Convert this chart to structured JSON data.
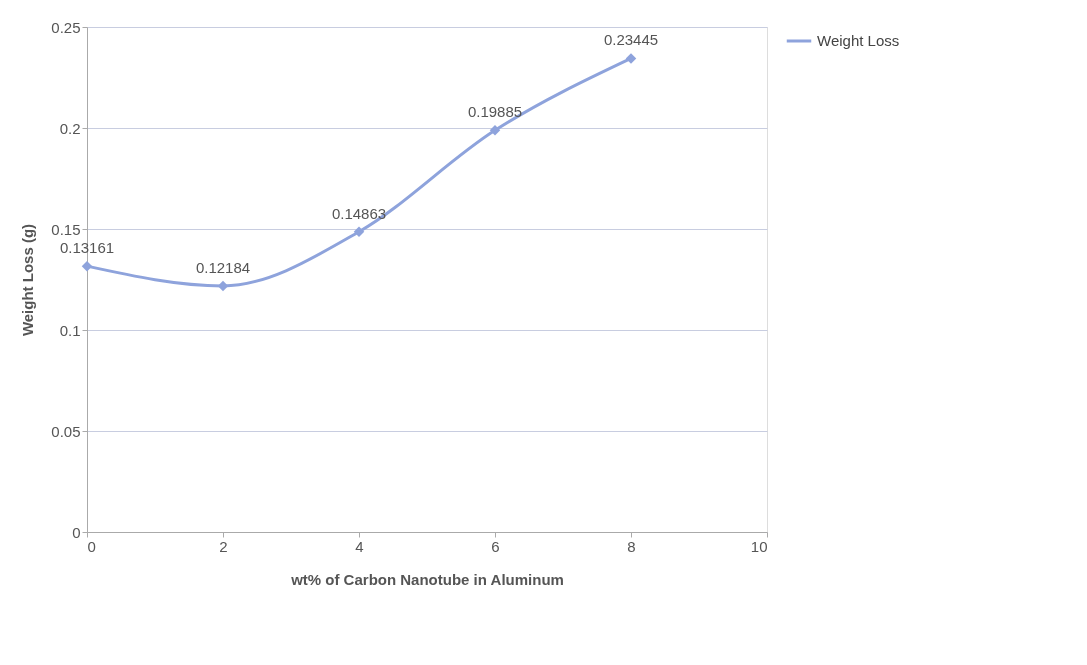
{
  "chart_data": {
    "type": "line",
    "xlabel": "wt% of Carbon Nanotube in Aluminum",
    "ylabel": "Weight Loss (g)",
    "x": [
      0,
      2,
      4,
      6,
      8
    ],
    "series": [
      {
        "name": "Weight Loss",
        "color": "#8ea3dc",
        "values": [
          0.13161,
          0.12184,
          0.14863,
          0.19885,
          0.23445
        ]
      }
    ],
    "xlim": [
      0,
      10
    ],
    "xticks": [
      0,
      2,
      4,
      6,
      8,
      10
    ],
    "ylim": [
      0,
      0.25
    ],
    "yticks": [
      0,
      0.05,
      0.1,
      0.15,
      0.2,
      0.25
    ],
    "grid": "y",
    "legend": "right",
    "marker": "diamond",
    "line_style": "solid",
    "data_labels": true
  }
}
